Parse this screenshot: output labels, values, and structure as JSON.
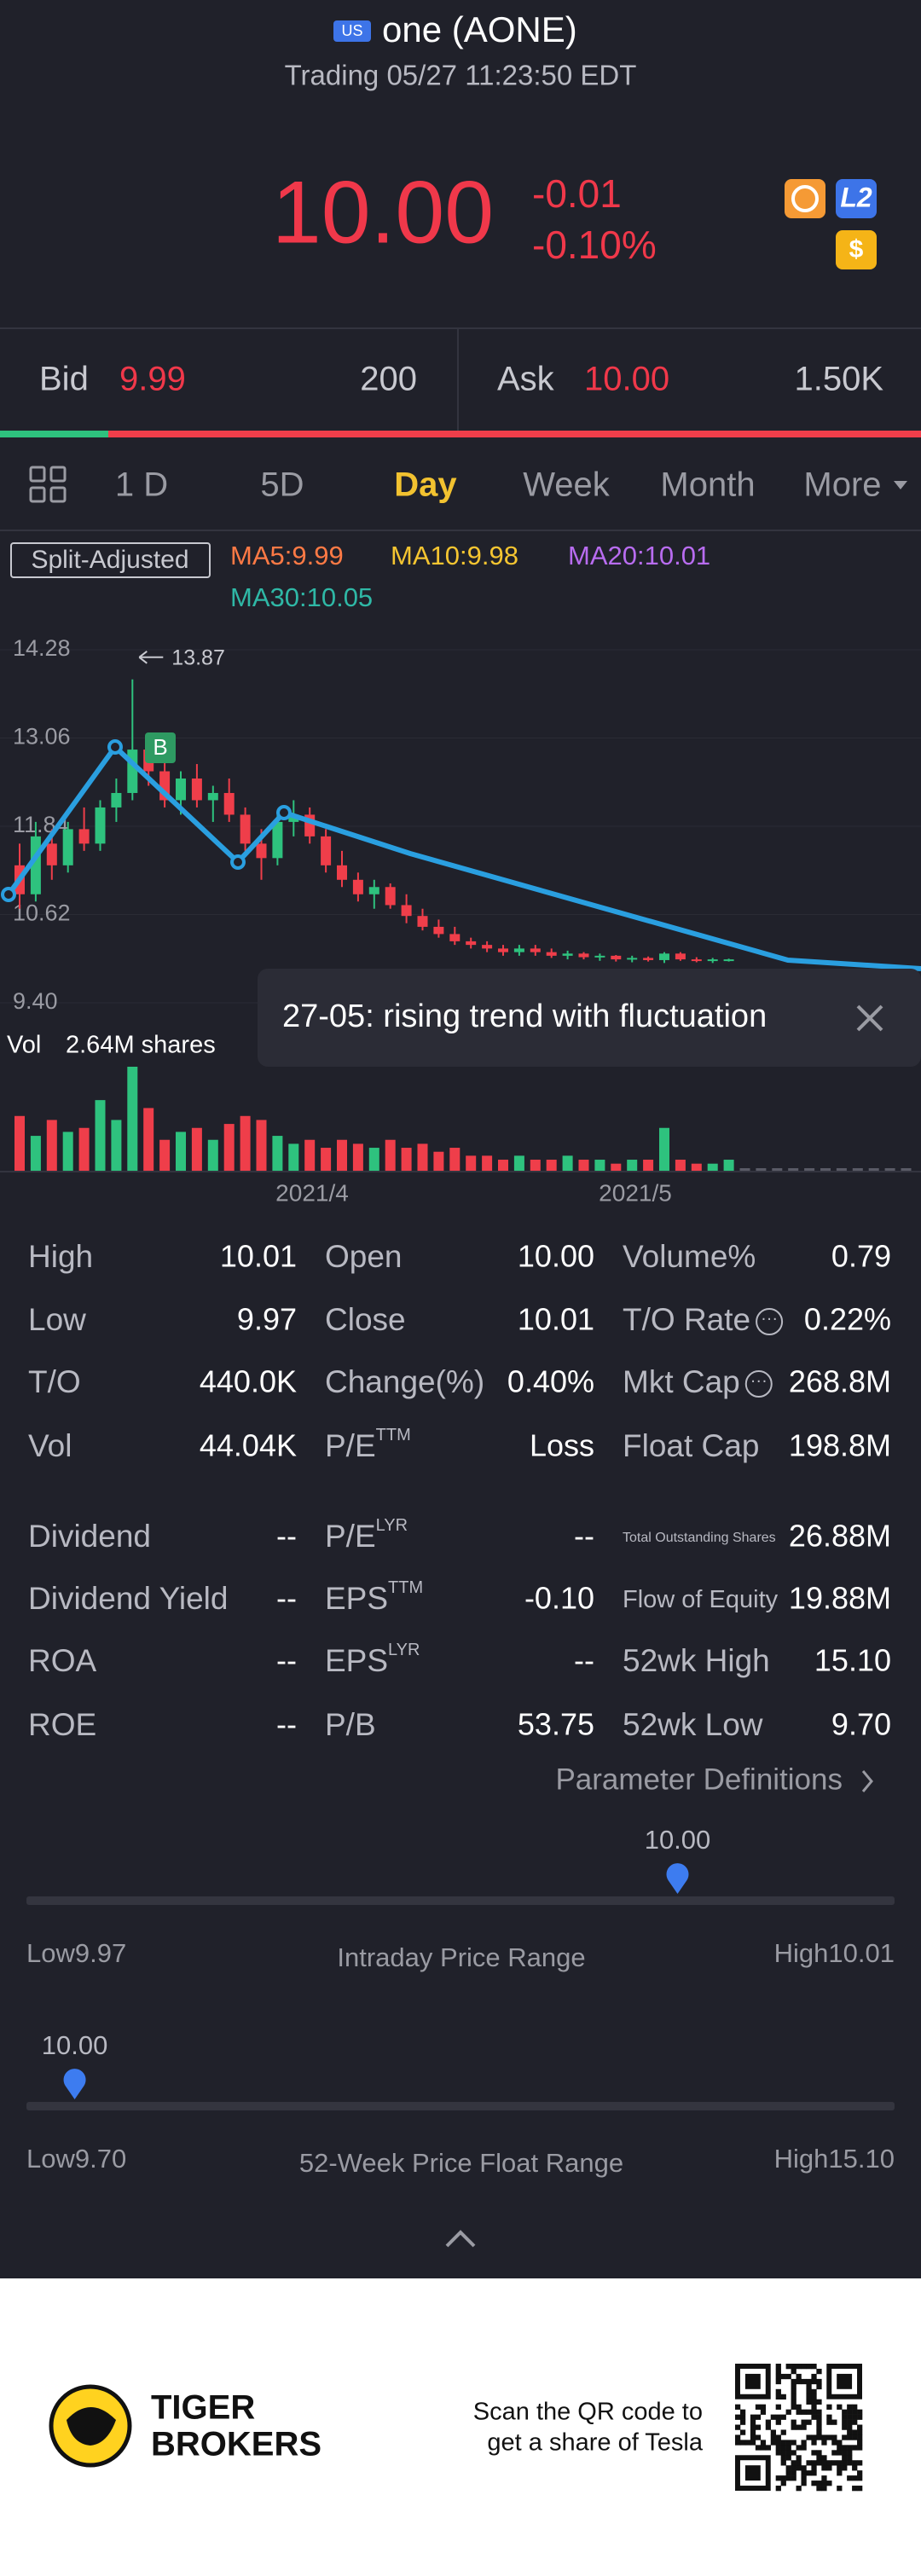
{
  "header": {
    "market": "US",
    "name": "one (AONE)",
    "status": "Trading 05/27 11:23:50 EDT"
  },
  "quote": {
    "price": "10.00",
    "change": "-0.01",
    "change_pct": "-0.10%",
    "badges": [
      "L2",
      "$"
    ]
  },
  "orderbook": {
    "bid_label": "Bid",
    "bid": "9.99",
    "bid_size": "200",
    "ask_label": "Ask",
    "ask": "10.00",
    "ask_size": "1.50K"
  },
  "tabs": {
    "items": [
      "1 D",
      "5D",
      "Day",
      "Week",
      "Month",
      "More"
    ],
    "active": 2
  },
  "chart_data": {
    "type": "candlestick",
    "adjustment": "Split-Adjusted",
    "indicators": [
      {
        "label": "MA5:9.99",
        "color": "#ff7a45"
      },
      {
        "label": "MA10:9.98",
        "color": "#f5c531"
      },
      {
        "label": "MA20:10.01",
        "color": "#b86cf0"
      },
      {
        "label": "MA30:10.05",
        "color": "#2fb8a6"
      }
    ],
    "ylim": [
      9.4,
      14.28
    ],
    "yticks": [
      {
        "value": 14.28,
        "label": "14.28"
      },
      {
        "value": 13.06,
        "label": "13.06"
      },
      {
        "value": 11.84,
        "label": "11.84"
      },
      {
        "value": 10.62,
        "label": "10.62"
      },
      {
        "value": 9.4,
        "label": "9.40"
      }
    ],
    "up_color": "#2ec27e",
    "down_color": "#ef3e4a",
    "candles": [
      [
        11.3,
        11.6,
        10.7,
        10.9
      ],
      [
        10.9,
        11.9,
        10.8,
        11.7
      ],
      [
        11.6,
        11.8,
        11.1,
        11.3
      ],
      [
        11.3,
        11.9,
        11.2,
        11.8
      ],
      [
        11.8,
        12.1,
        11.5,
        11.6
      ],
      [
        11.6,
        12.2,
        11.5,
        12.1
      ],
      [
        12.1,
        12.5,
        11.9,
        12.3
      ],
      [
        12.3,
        13.87,
        12.2,
        12.9
      ],
      [
        12.9,
        13.1,
        12.4,
        12.6
      ],
      [
        12.6,
        12.8,
        12.1,
        12.2
      ],
      [
        12.2,
        12.6,
        12.0,
        12.5
      ],
      [
        12.5,
        12.7,
        12.1,
        12.2
      ],
      [
        12.2,
        12.4,
        11.9,
        12.3
      ],
      [
        12.3,
        12.5,
        11.9,
        12.0
      ],
      [
        12.0,
        12.1,
        11.5,
        11.6
      ],
      [
        11.6,
        11.8,
        11.1,
        11.4
      ],
      [
        11.4,
        12.0,
        11.3,
        11.9
      ],
      [
        11.9,
        12.2,
        11.7,
        12.0
      ],
      [
        12.0,
        12.1,
        11.6,
        11.7
      ],
      [
        11.7,
        11.8,
        11.2,
        11.3
      ],
      [
        11.3,
        11.5,
        11.0,
        11.1
      ],
      [
        11.1,
        11.2,
        10.8,
        10.9
      ],
      [
        10.9,
        11.1,
        10.7,
        11.0
      ],
      [
        11.0,
        11.05,
        10.7,
        10.75
      ],
      [
        10.75,
        10.9,
        10.5,
        10.6
      ],
      [
        10.6,
        10.7,
        10.4,
        10.45
      ],
      [
        10.45,
        10.55,
        10.3,
        10.35
      ],
      [
        10.35,
        10.45,
        10.2,
        10.25
      ],
      [
        10.25,
        10.3,
        10.15,
        10.2
      ],
      [
        10.2,
        10.25,
        10.1,
        10.15
      ],
      [
        10.15,
        10.2,
        10.05,
        10.1
      ],
      [
        10.1,
        10.2,
        10.05,
        10.15
      ],
      [
        10.15,
        10.2,
        10.05,
        10.1
      ],
      [
        10.1,
        10.15,
        10.02,
        10.05
      ],
      [
        10.05,
        10.12,
        10.0,
        10.08
      ],
      [
        10.08,
        10.1,
        10.0,
        10.03
      ],
      [
        10.03,
        10.08,
        9.98,
        10.05
      ],
      [
        10.05,
        10.06,
        9.97,
        10.0
      ],
      [
        10.0,
        10.05,
        9.96,
        10.02
      ],
      [
        10.02,
        10.04,
        9.97,
        9.99
      ],
      [
        9.99,
        10.1,
        9.95,
        10.08
      ],
      [
        10.08,
        10.1,
        9.98,
        10.0
      ],
      [
        10.0,
        10.03,
        9.96,
        9.98
      ],
      [
        9.98,
        10.02,
        9.95,
        10.0
      ],
      [
        10.0,
        10.01,
        9.97,
        10.0
      ]
    ],
    "peak_label": 13.87,
    "trade_marker": "B",
    "dates": [
      "2021/4",
      "2021/5"
    ],
    "volume": {
      "label": "Vol",
      "max_label": "2.64M shares",
      "ylim": [
        0,
        2.64
      ],
      "values": [
        1.4,
        0.9,
        1.3,
        1.0,
        1.1,
        1.8,
        1.3,
        2.64,
        1.6,
        0.8,
        1.0,
        1.1,
        0.8,
        1.2,
        1.4,
        1.3,
        0.9,
        0.7,
        0.8,
        0.6,
        0.8,
        0.7,
        0.6,
        0.8,
        0.6,
        0.7,
        0.5,
        0.6,
        0.4,
        0.4,
        0.3,
        0.4,
        0.3,
        0.3,
        0.4,
        0.3,
        0.3,
        0.2,
        0.3,
        0.3,
        1.1,
        0.3,
        0.2,
        0.2,
        0.3
      ]
    },
    "tooltip": "27-05: rising trend with fluctuation"
  },
  "stats": {
    "rows": [
      [
        {
          "label": "High",
          "value": "10.01"
        },
        {
          "label": "Open",
          "value": "10.00"
        },
        {
          "label": "Volume%",
          "value": "0.79"
        }
      ],
      [
        {
          "label": "Low",
          "value": "9.97"
        },
        {
          "label": "Close",
          "value": "10.01"
        },
        {
          "label": "T/O Rate",
          "value": "0.22%",
          "info": true
        }
      ],
      [
        {
          "label": "T/O",
          "value": "440.0K"
        },
        {
          "label": "Change(%)",
          "value": "0.40%"
        },
        {
          "label": "Mkt Cap",
          "value": "268.8M",
          "info": true
        }
      ],
      [
        {
          "label": "Vol",
          "value": "44.04K"
        },
        {
          "label": "P/E",
          "sup": "TTM",
          "value": "Loss"
        },
        {
          "label": "Float Cap",
          "value": "198.8M"
        }
      ],
      [
        {
          "label": "Dividend",
          "value": "--"
        },
        {
          "label": "P/E",
          "sup": "LYR",
          "value": "--"
        },
        {
          "label": "Total Outstanding Shares",
          "value": "26.88M",
          "small": true
        }
      ],
      [
        {
          "label": "Dividend Yield",
          "value": "--"
        },
        {
          "label": "EPS",
          "sup": "TTM",
          "value": "-0.10"
        },
        {
          "label": "Flow of Equity",
          "value": "19.88M",
          "small_label": true
        }
      ],
      [
        {
          "label": "ROA",
          "value": "--"
        },
        {
          "label": "EPS",
          "sup": "LYR",
          "value": "--"
        },
        {
          "label": "52wk High",
          "value": "15.10"
        }
      ],
      [
        {
          "label": "ROE",
          "value": "--"
        },
        {
          "label": "P/B",
          "value": "53.75"
        },
        {
          "label": "52wk Low",
          "value": "9.70"
        }
      ]
    ],
    "link": "Parameter Definitions"
  },
  "ranges": [
    {
      "title": "Intraday Price Range",
      "low_label": "Low",
      "low": {
        "value": 9.97,
        "label": "9.97"
      },
      "high_label": "High",
      "high": {
        "value": 10.01,
        "label": "10.01"
      },
      "current": {
        "value": 10,
        "label": "10.00"
      }
    },
    {
      "title": "52-Week Price Float Range",
      "low_label": "Low",
      "low": {
        "value": 9.7,
        "label": "9.70"
      },
      "high_label": "High",
      "high": {
        "value": 15.1,
        "label": "15.10"
      },
      "current": {
        "value": 10,
        "label": "10.00"
      }
    }
  ],
  "footer": {
    "brand": [
      "TIGER",
      "BROKERS"
    ],
    "qr_text": [
      "Scan the QR code to",
      "get a share of Tesla"
    ]
  }
}
